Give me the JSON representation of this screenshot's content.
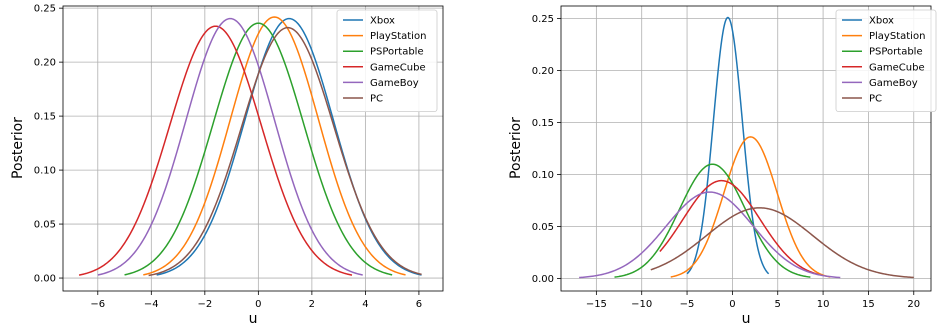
{
  "chart_data": [
    {
      "type": "line",
      "title": "",
      "xlabel": "u",
      "ylabel": "Posterior",
      "xlim": [
        -7.3,
        6.9
      ],
      "ylim": [
        -0.012,
        0.252
      ],
      "xticks": [
        -6,
        -4,
        -2,
        0,
        2,
        4,
        6
      ],
      "xtick_labels": [
        "−6",
        "−4",
        "−2",
        "0",
        "2",
        "4",
        "6"
      ],
      "yticks": [
        0.0,
        0.05,
        0.1,
        0.15,
        0.2,
        0.25
      ],
      "ytick_labels": [
        "0.00",
        "0.05",
        "0.10",
        "0.15",
        "0.20",
        "0.25"
      ],
      "grid": true,
      "legend_position": "top-right",
      "series": [
        {
          "name": "Xbox",
          "color": "#1f77b4",
          "mean": 1.15,
          "sd": 1.66,
          "xmin": -3.8,
          "xmax": 6.1
        },
        {
          "name": "PlayStation",
          "color": "#ff7f0e",
          "mean": 0.6,
          "sd": 1.65,
          "xmin": -4.3,
          "xmax": 5.5
        },
        {
          "name": "PSPortable",
          "color": "#2ca02c",
          "mean": 0.0,
          "sd": 1.69,
          "xmin": -5.0,
          "xmax": 5.0
        },
        {
          "name": "GameCube",
          "color": "#d62728",
          "mean": -1.6,
          "sd": 1.71,
          "xmin": -6.7,
          "xmax": 3.5
        },
        {
          "name": "GameBoy",
          "color": "#9467bd",
          "mean": -1.05,
          "sd": 1.66,
          "xmin": -6.0,
          "xmax": 3.9
        },
        {
          "name": "PC",
          "color": "#8c564b",
          "mean": 1.1,
          "sd": 1.72,
          "xmin": -4.1,
          "xmax": 6.1
        }
      ]
    },
    {
      "type": "line",
      "title": "",
      "xlabel": "u",
      "ylabel": "Posterior",
      "xlim": [
        -18.9,
        21.9
      ],
      "ylim": [
        -0.012,
        0.262
      ],
      "xticks": [
        -15,
        -10,
        -5,
        0,
        5,
        10,
        15,
        20
      ],
      "xtick_labels": [
        "−15",
        "−10",
        "−5",
        "0",
        "5",
        "10",
        "15",
        "20"
      ],
      "yticks": [
        0.0,
        0.05,
        0.1,
        0.15,
        0.2,
        0.25
      ],
      "ytick_labels": [
        "0.00",
        "0.05",
        "0.10",
        "0.15",
        "0.20",
        "0.25"
      ],
      "grid": true,
      "legend_position": "top-right",
      "series": [
        {
          "name": "Xbox",
          "color": "#1f77b4",
          "mean": -0.5,
          "sd": 1.59,
          "xmin": -5.0,
          "xmax": 4.0
        },
        {
          "name": "PlayStation",
          "color": "#ff7f0e",
          "mean": 2.0,
          "sd": 2.93,
          "xmin": -6.8,
          "xmax": 10.8
        },
        {
          "name": "PSPortable",
          "color": "#2ca02c",
          "mean": -2.2,
          "sd": 3.63,
          "xmin": -13.0,
          "xmax": 8.6
        },
        {
          "name": "GameCube",
          "color": "#d62728",
          "mean": -1.2,
          "sd": 4.24,
          "xmin": -8.0,
          "xmax": 9.5
        },
        {
          "name": "GameBoy",
          "color": "#9467bd",
          "mean": -2.5,
          "sd": 4.8,
          "xmin": -16.9,
          "xmax": 11.9
        },
        {
          "name": "PC",
          "color": "#8c564b",
          "mean": 3.0,
          "sd": 5.87,
          "xmin": -9.0,
          "xmax": 20.0
        }
      ]
    }
  ]
}
